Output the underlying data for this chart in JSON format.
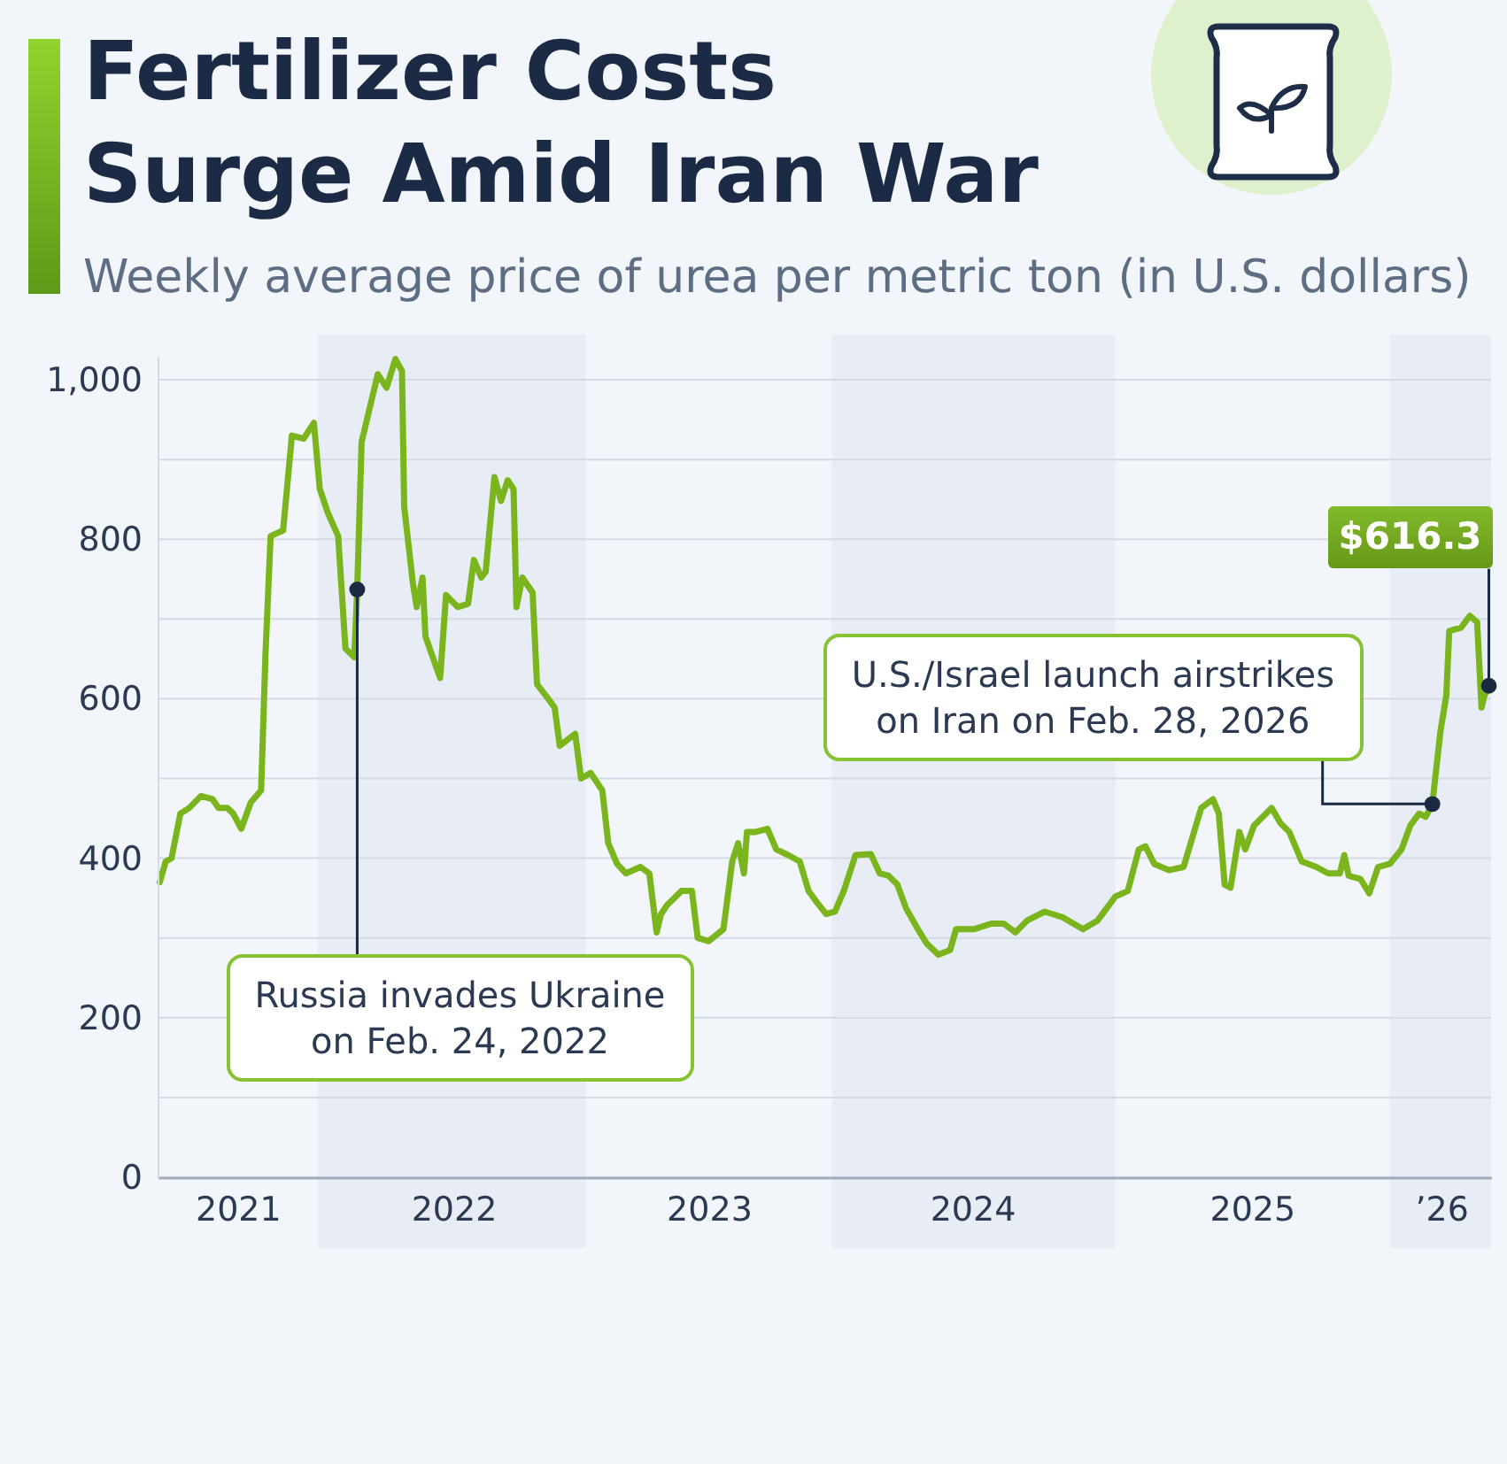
{
  "chart_data": {
    "type": "line",
    "title": "Fertilizer Costs\nSurge Amid Iran War",
    "subtitle": "Weekly average price of urea per metric ton (in U.S. dollars)",
    "x": [
      "2021-05-31",
      "2021-06-08",
      "2021-06-16",
      "2021-06-28",
      "2021-07-10",
      "2021-07-26",
      "2021-08-11",
      "2021-08-19",
      "2021-08-31",
      "2021-09-08",
      "2021-09-19",
      "2021-10-02",
      "2021-10-16",
      "2021-10-22",
      "2021-10-29",
      "2021-11-15",
      "2021-11-27",
      "2021-12-13",
      "2021-12-27",
      "2022-01-04",
      "2022-01-15",
      "2022-01-29",
      "2022-02-08",
      "2022-02-20",
      "2022-02-24",
      "2022-03-02",
      "2022-03-24",
      "2022-04-05",
      "2022-04-17",
      "2022-04-26",
      "2022-04-29",
      "2022-05-11",
      "2022-05-16",
      "2022-05-24",
      "2022-05-28",
      "2022-06-17",
      "2022-06-25",
      "2022-07-11",
      "2022-07-25",
      "2022-08-02",
      "2022-08-12",
      "2022-08-18",
      "2022-08-30",
      "2022-09-08",
      "2022-09-17",
      "2022-09-25",
      "2022-09-29",
      "2022-10-07",
      "2022-10-21",
      "2022-10-27",
      "2022-11-08",
      "2022-11-20",
      "2022-11-27",
      "2022-12-18",
      "2022-12-26",
      "2023-01-08",
      "2023-01-24",
      "2023-02-01",
      "2023-02-13",
      "2023-02-25",
      "2023-03-17",
      "2023-03-29",
      "2023-04-08",
      "2023-04-14",
      "2023-04-22",
      "2023-05-12",
      "2023-05-26",
      "2023-06-03",
      "2023-06-18",
      "2023-07-08",
      "2023-07-20",
      "2023-07-28",
      "2023-08-05",
      "2023-08-09",
      "2023-08-21",
      "2023-09-06",
      "2023-09-18",
      "2023-10-04",
      "2023-10-20",
      "2023-11-01",
      "2023-11-13",
      "2023-11-25",
      "2023-12-07",
      "2023-12-19",
      "2024-01-04",
      "2024-01-25",
      "2024-02-06",
      "2024-02-18",
      "2024-03-01",
      "2024-03-13",
      "2024-03-29",
      "2024-04-10",
      "2024-04-26",
      "2024-05-12",
      "2024-05-20",
      "2024-06-13",
      "2024-07-07",
      "2024-07-24",
      "2024-08-09",
      "2024-08-25",
      "2024-09-18",
      "2024-10-12",
      "2024-11-09",
      "2024-11-29",
      "2024-12-23",
      "2025-01-09",
      "2025-01-24",
      "2025-02-02",
      "2025-02-14",
      "2025-03-06",
      "2025-03-26",
      "2025-04-07",
      "2025-04-19",
      "2025-05-05",
      "2025-05-13",
      "2025-05-21",
      "2025-05-29",
      "2025-06-10",
      "2025-06-18",
      "2025-06-30",
      "2025-07-24",
      "2025-08-05",
      "2025-08-17",
      "2025-09-03",
      "2025-09-23",
      "2025-10-09",
      "2025-10-25",
      "2025-10-31",
      "2025-11-06",
      "2025-11-22",
      "2025-12-04",
      "2025-12-16",
      "2026-01-01",
      "2026-01-17",
      "2026-01-29",
      "2026-02-10",
      "2026-02-19",
      "2026-02-28",
      "2026-03-11",
      "2026-03-19",
      "2026-03-23",
      "2026-04-08",
      "2026-04-20",
      "2026-04-30",
      "2026-05-06",
      "2026-05-10",
      "2026-05-16"
    ],
    "series": [
      {
        "color": "#7ab51d",
        "values": [
          370,
          396,
          400,
          456,
          463,
          478,
          474,
          463,
          463,
          456,
          437,
          470,
          485,
          656,
          804,
          811,
          930,
          926,
          946,
          863,
          833,
          804,
          663,
          652,
          737,
          922,
          1007,
          990,
          1026,
          1011,
          841,
          744,
          715,
          752,
          678,
          626,
          730,
          715,
          719,
          774,
          752,
          759,
          878,
          848,
          874,
          863,
          715,
          752,
          733,
          618,
          604,
          589,
          541,
          556,
          500,
          507,
          485,
          419,
          393,
          381,
          389,
          381,
          307,
          330,
          341,
          359,
          359,
          300,
          296,
          311,
          396,
          419,
          381,
          433,
          433,
          437,
          411,
          404,
          396,
          359,
          344,
          330,
          333,
          359,
          404,
          405,
          381,
          378,
          367,
          337,
          311,
          293,
          279,
          285,
          311,
          311,
          318,
          318,
          307,
          322,
          333,
          326,
          311,
          322,
          352,
          359,
          411,
          415,
          393,
          385,
          389,
          426,
          463,
          474,
          456,
          367,
          363,
          433,
          411,
          441,
          463,
          444,
          433,
          396,
          389,
          381,
          381,
          404,
          378,
          374,
          356,
          389,
          393,
          411,
          441,
          456,
          452,
          468,
          559,
          604,
          685,
          689,
          704,
          696,
          589,
          604,
          616.3
        ],
        "value_labels": [
          null,
          null,
          null,
          null,
          null,
          null,
          null,
          null,
          null,
          null,
          null,
          null,
          null,
          null,
          null,
          null,
          null,
          null,
          null,
          null,
          null,
          null,
          null,
          null,
          null,
          null,
          null,
          null,
          null,
          null,
          null,
          null,
          null,
          null,
          null,
          null,
          null,
          null,
          null,
          null,
          null,
          null,
          null,
          null,
          null,
          null,
          null,
          null,
          null,
          null,
          null,
          null,
          null,
          null,
          null,
          null,
          null,
          null,
          null,
          null,
          null,
          null,
          null,
          null,
          null,
          null,
          null,
          null,
          null,
          null,
          null,
          null,
          null,
          null,
          null,
          null,
          null,
          null,
          null,
          null,
          null,
          null,
          null,
          null,
          null,
          null,
          null,
          null,
          null,
          null,
          null,
          null,
          null,
          null,
          null,
          null,
          null,
          null,
          null,
          null,
          null,
          null,
          null,
          null,
          null,
          null,
          null,
          null,
          null,
          null,
          null,
          null,
          null,
          null,
          null,
          null,
          null,
          null,
          null,
          null,
          null,
          null,
          null,
          null,
          null,
          null,
          null,
          null,
          null,
          null,
          null,
          null,
          null,
          null,
          null,
          null,
          null,
          null,
          null,
          null,
          null,
          null,
          null,
          null,
          null,
          null,
          "$616.3"
        ]
      }
    ],
    "xlim": [
      "2021-05-28",
      "2026-05-19"
    ],
    "xticks": [
      {
        "value": "2021-09-14",
        "label": "2021"
      },
      {
        "value": "2022-07-05",
        "label": "2022"
      },
      {
        "value": "2023-06-18",
        "label": "2023"
      },
      {
        "value": "2024-06-11",
        "label": "2024"
      },
      {
        "value": "2025-06-27",
        "label": "2025"
      },
      {
        "value": "2026-03-12",
        "label": "’26"
      }
    ],
    "ylim": [
      0,
      1030
    ],
    "yticks": [
      0,
      {
        "value": 100,
        "label": null
      },
      200,
      {
        "value": 300,
        "label": null
      },
      400,
      {
        "value": 500,
        "label": null
      },
      600,
      {
        "value": 700,
        "label": null
      },
      800,
      {
        "value": 900,
        "label": null
      },
      {
        "value": 1000,
        "label": "1,000"
      }
    ],
    "grid": "y",
    "bands": [
      {
        "axis": "x",
        "from": "2022-01-01",
        "to": "2023-01-01",
        "color": "#e8edf5"
      },
      {
        "axis": "x",
        "from": "2023-12-03",
        "to": "2024-12-23",
        "color": "#e8edf5"
      },
      {
        "axis": "x",
        "from": "2026-01-01",
        "to": "2026-05-19",
        "color": "#e8edf5"
      }
    ],
    "annotations": [
      {
        "text": "Russia invades Ukraine\non Feb. 24, 2022",
        "x": "2022-02-24",
        "y": 737
      },
      {
        "text": "U.S./Israel launch airstrikes\non Iran on Feb. 28, 2026",
        "x": "2026-02-28",
        "y": 468
      }
    ]
  }
}
